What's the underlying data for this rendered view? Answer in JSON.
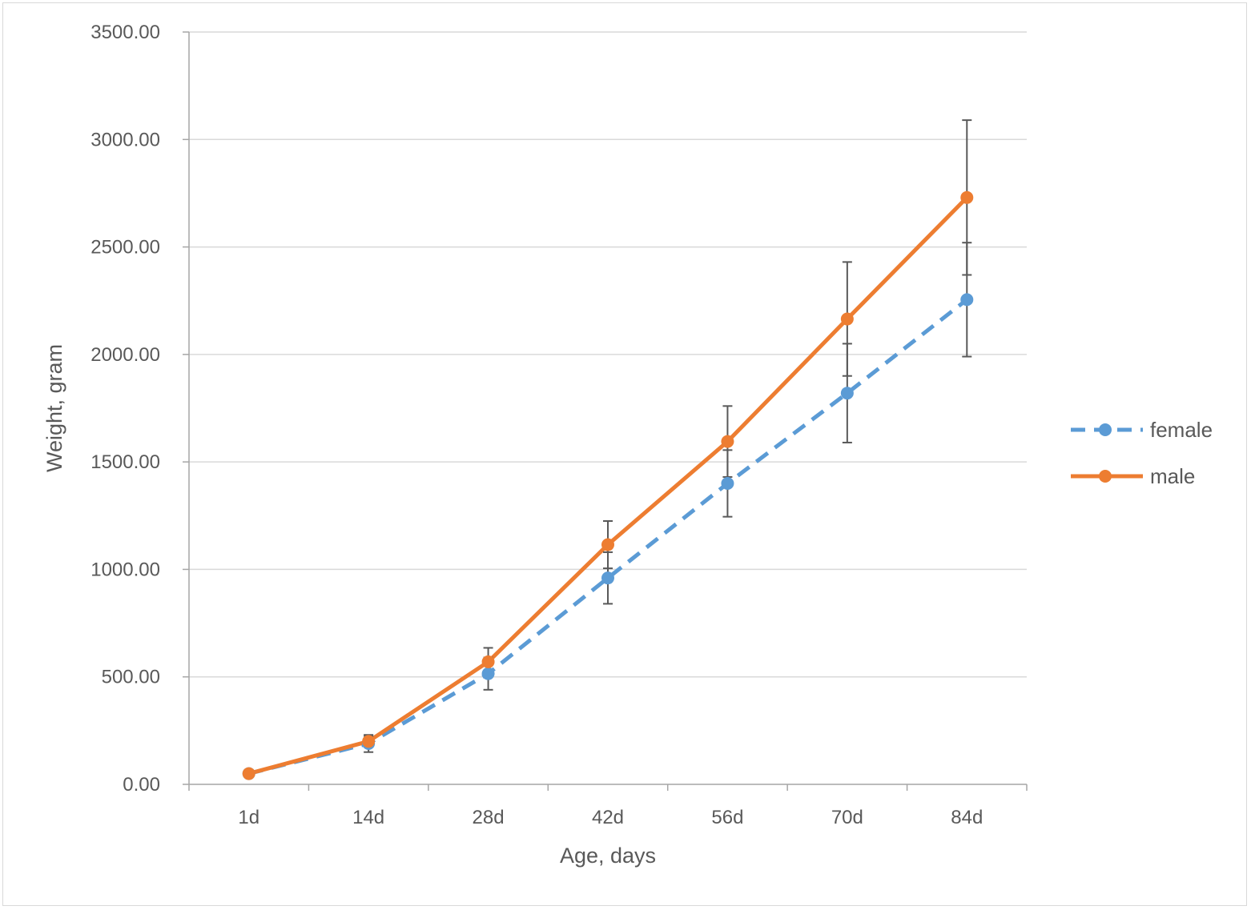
{
  "chart_data": {
    "type": "line",
    "title": "",
    "xlabel": "Age, days",
    "ylabel": "Weight, gram",
    "categories": [
      "1d",
      "14d",
      "28d",
      "42d",
      "56d",
      "70d",
      "84d"
    ],
    "ylim": [
      0,
      3500
    ],
    "yticks": [
      "0.00",
      "500.00",
      "1000.00",
      "1500.00",
      "2000.00",
      "2500.00",
      "3000.00",
      "3500.00"
    ],
    "grid": true,
    "legend_position": "right",
    "series": [
      {
        "name": "female",
        "values": [
          50,
          190,
          515,
          960,
          1400,
          1820,
          2255
        ],
        "error": [
          5,
          40,
          75,
          120,
          155,
          230,
          265
        ],
        "color": "#5b9bd5",
        "style": "dashed"
      },
      {
        "name": "male",
        "values": [
          50,
          200,
          570,
          1115,
          1595,
          2165,
          2730
        ],
        "error": [
          5,
          25,
          65,
          110,
          165,
          265,
          360
        ],
        "color": "#ed7d31",
        "style": "solid"
      }
    ]
  }
}
